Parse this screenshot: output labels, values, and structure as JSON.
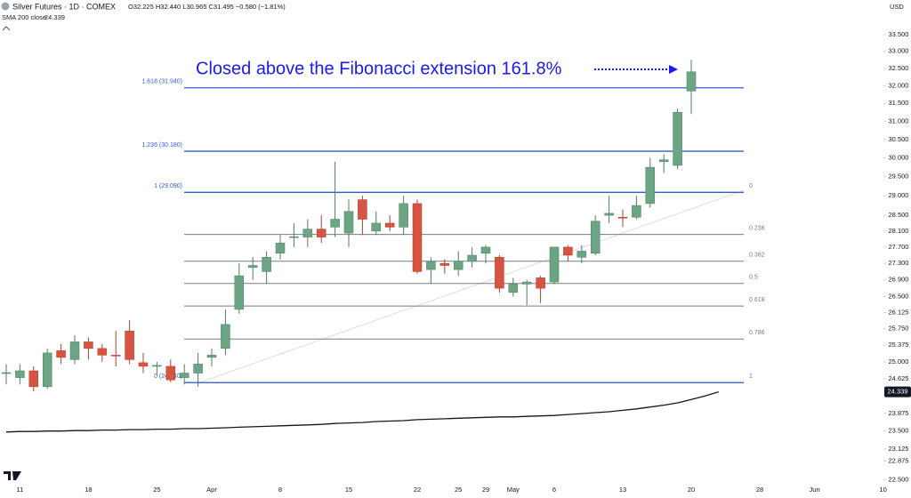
{
  "chart_data": {
    "type": "candlestick",
    "title": "Silver Futures · 1D · COMEX",
    "header_quote": "O32.225 H32.440 L30.965 C31.495 −0.580 (−1.81%)",
    "currency": "USD",
    "annotation": "Closed above the Fibonacci extension 161.8%",
    "log_scale": true,
    "up_color": "#6ba583",
    "down_color": "#d75442",
    "x": [
      null,
      "11",
      null,
      null,
      null,
      null,
      "18",
      null,
      null,
      null,
      null,
      "25",
      null,
      null,
      null,
      "Apr",
      null,
      null,
      null,
      null,
      "8",
      null,
      null,
      null,
      null,
      "15",
      null,
      null,
      null,
      null,
      "22",
      null,
      null,
      "25",
      null,
      "29",
      null,
      "May",
      null,
      null,
      "6",
      null,
      null,
      null,
      null,
      "13",
      null,
      null,
      null,
      null,
      "20",
      null,
      null,
      null,
      null,
      "28",
      null,
      null,
      null,
      "Jun",
      null,
      null,
      null,
      null,
      "10"
    ],
    "open": [
      24.75,
      24.65,
      24.8,
      24.45,
      25.25,
      25.05,
      25.45,
      25.3,
      25.15,
      25.7,
      24.98,
      24.9,
      24.9,
      24.65,
      24.75,
      25.1,
      25.3,
      26.2,
      27.2,
      27.1,
      27.55,
      27.95,
      27.95,
      28.15,
      28.2,
      28.05,
      28.9,
      28.1,
      28.3,
      28.2,
      28.8,
      27.15,
      27.3,
      27.15,
      27.35,
      27.55,
      27.45,
      26.6,
      26.8,
      26.95,
      26.85,
      27.7,
      27.45,
      27.55,
      28.5,
      28.45,
      28.45,
      28.8,
      29.9,
      29.8,
      31.85,
      null,
      null,
      null,
      null,
      null,
      null,
      null,
      null,
      null,
      null,
      null,
      null,
      null,
      null
    ],
    "high": [
      24.95,
      24.95,
      24.9,
      25.3,
      25.4,
      25.6,
      25.55,
      25.4,
      25.7,
      25.95,
      25.2,
      25.0,
      25.05,
      24.95,
      25.2,
      25.3,
      26.2,
      27.3,
      27.45,
      27.6,
      28.0,
      28.3,
      28.4,
      28.5,
      29.9,
      28.9,
      29.0,
      28.6,
      28.5,
      29.0,
      28.9,
      27.45,
      27.4,
      27.6,
      27.7,
      27.75,
      27.5,
      26.95,
      26.9,
      27.0,
      27.7,
      27.75,
      27.75,
      28.5,
      29.0,
      28.65,
      29.0,
      30.0,
      30.1,
      31.35,
      32.75,
      null,
      null,
      null,
      null,
      null,
      null,
      null,
      null,
      null,
      null,
      null,
      null,
      null,
      null
    ],
    "low": [
      24.5,
      24.5,
      24.35,
      24.4,
      24.95,
      24.95,
      25.05,
      25.0,
      24.9,
      24.95,
      24.75,
      24.7,
      24.55,
      24.5,
      24.45,
      24.9,
      25.15,
      26.1,
      26.9,
      26.8,
      27.4,
      27.7,
      27.7,
      27.8,
      27.95,
      27.7,
      28.0,
      28.0,
      28.1,
      28.0,
      27.05,
      26.8,
      27.05,
      27.0,
      27.2,
      27.3,
      26.6,
      26.5,
      26.3,
      26.35,
      26.8,
      27.35,
      27.3,
      27.5,
      28.3,
      28.2,
      28.4,
      28.7,
      29.6,
      29.7,
      31.2,
      null,
      null,
      null,
      null,
      null,
      null,
      null,
      null,
      null,
      null,
      null,
      null,
      null,
      null
    ],
    "close": [
      24.76,
      24.8,
      24.45,
      25.2,
      25.1,
      25.45,
      25.3,
      25.15,
      25.13,
      25.05,
      24.9,
      24.92,
      24.6,
      24.75,
      24.95,
      25.15,
      25.85,
      27.0,
      27.25,
      27.45,
      27.8,
      27.96,
      28.15,
      27.95,
      28.4,
      28.6,
      28.4,
      28.3,
      28.2,
      28.8,
      27.1,
      27.35,
      27.25,
      27.35,
      27.5,
      27.7,
      26.7,
      26.8,
      26.85,
      26.7,
      27.7,
      27.5,
      27.6,
      28.35,
      28.55,
      28.44,
      28.75,
      29.75,
      29.95,
      31.25,
      32.4,
      null,
      null,
      null,
      null,
      null,
      null,
      null,
      null,
      null,
      null,
      null,
      null,
      null,
      null
    ],
    "sma": {
      "name": "SMA 200 close",
      "color": "#131722",
      "last_label": "24.339",
      "values": [
        23.48,
        23.49,
        23.49,
        23.5,
        23.5,
        23.51,
        23.51,
        23.52,
        23.52,
        23.53,
        23.53,
        23.54,
        23.54,
        23.55,
        23.55,
        23.56,
        23.57,
        23.58,
        23.59,
        23.6,
        23.61,
        23.62,
        23.63,
        23.64,
        23.66,
        23.67,
        23.68,
        23.7,
        23.71,
        23.72,
        23.74,
        23.75,
        23.76,
        23.77,
        23.78,
        23.79,
        23.8,
        23.8,
        23.81,
        23.82,
        23.83,
        23.85,
        23.87,
        23.89,
        23.91,
        23.94,
        23.97,
        24.01,
        24.05,
        24.1,
        24.17,
        24.25,
        24.339,
        null,
        null,
        null,
        null,
        null,
        null,
        null,
        null,
        null,
        null,
        null,
        null
      ]
    },
    "sma_last": {
      "value": 24.339,
      "label": "24.339"
    },
    "fib_extension": {
      "color": "#2f5fd6",
      "levels": [
        {
          "label": "0 (24.540)",
          "value": 24.54
        },
        {
          "label": "1 (29.090)",
          "value": 29.09
        },
        {
          "label": "1.236 (30.180)",
          "value": 30.18
        },
        {
          "label": "1.618 (31.940)",
          "value": 31.94
        }
      ]
    },
    "fib_retracement": {
      "color": "#787b86",
      "levels": [
        {
          "ratio": 0,
          "value": 29.09
        },
        {
          "ratio": 0.236,
          "value": 28.016
        },
        {
          "ratio": 0.382,
          "value": 27.352
        },
        {
          "ratio": 0.5,
          "value": 26.815
        },
        {
          "ratio": 0.618,
          "value": 26.278
        },
        {
          "ratio": 0.786,
          "value": 25.514
        },
        {
          "ratio": 1,
          "value": 24.54
        }
      ]
    },
    "ylim": [
      22.4,
      33.95
    ],
    "yticks": [
      {
        "value": 33.5,
        "label": "33.500"
      },
      {
        "value": 33,
        "label": "33.000"
      },
      {
        "value": 32.5,
        "label": "32.500"
      },
      {
        "value": 32,
        "label": "32.000"
      },
      {
        "value": 31.5,
        "label": "31.500"
      },
      {
        "value": 31,
        "label": "31.000"
      },
      {
        "value": 30.5,
        "label": "30.500"
      },
      {
        "value": 30,
        "label": "30.000"
      },
      {
        "value": 29.5,
        "label": "29.500"
      },
      {
        "value": 29,
        "label": "29.000"
      },
      {
        "value": 28.5,
        "label": "28.500"
      },
      {
        "value": 28.1,
        "label": "28.100"
      },
      {
        "value": 27.7,
        "label": "27.700"
      },
      {
        "value": 27.3,
        "label": "27.300"
      },
      {
        "value": 26.9,
        "label": "26.900"
      },
      {
        "value": 26.5,
        "label": "26.500"
      },
      {
        "value": 26.125,
        "label": "26.125"
      },
      {
        "value": 25.75,
        "label": "25.750"
      },
      {
        "value": 25.375,
        "label": "25.375"
      },
      {
        "value": 25,
        "label": "25.000"
      },
      {
        "value": 24.625,
        "label": "24.625"
      },
      {
        "value": 23.875,
        "label": "23.875"
      },
      {
        "value": 23.5,
        "label": "23.500"
      },
      {
        "value": 23.125,
        "label": "23.125"
      },
      {
        "value": 22.875,
        "label": "22.875"
      },
      {
        "value": 22.5,
        "label": "22.500"
      }
    ]
  }
}
